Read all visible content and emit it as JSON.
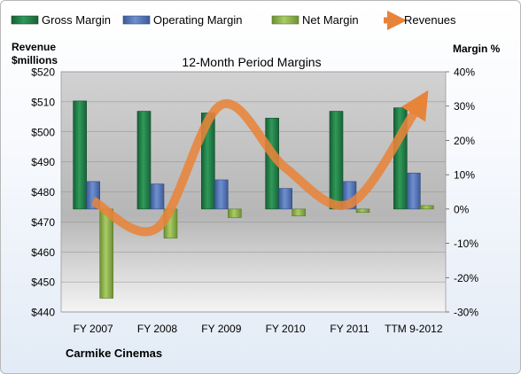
{
  "chart_data": {
    "type": "bar",
    "title": "12-Month Period Margins",
    "company": "Carmike Cinemas",
    "left_axis_label_line1": "Revenue",
    "left_axis_label_line2": "$millions",
    "right_axis_label": "Margin %",
    "categories": [
      "FY 2007",
      "FY 2008",
      "FY 2009",
      "FY 2010",
      "FY 2011",
      "TTM 9-2012"
    ],
    "left_ticks": [
      "$520",
      "$510",
      "$500",
      "$490",
      "$480",
      "$470",
      "$460",
      "$450",
      "$440"
    ],
    "right_ticks": [
      "40%",
      "30%",
      "20%",
      "10%",
      "0%",
      "-10%",
      "-20%",
      "-30%"
    ],
    "left_ylim": [
      440,
      520
    ],
    "right_ylim": [
      -30,
      40
    ],
    "series": [
      {
        "name": "Gross Margin",
        "axis": "right",
        "values": [
          31.5,
          28.5,
          28.0,
          26.5,
          28.5,
          29.5
        ],
        "color": "#1f7a45"
      },
      {
        "name": "Operating Margin",
        "axis": "right",
        "values": [
          8.0,
          7.3,
          8.5,
          6.0,
          8.0,
          10.5
        ],
        "color": "#4f6fb0"
      },
      {
        "name": "Net Margin",
        "axis": "right",
        "values": [
          -26.0,
          -8.5,
          -2.5,
          -2.0,
          -1.0,
          1.0
        ],
        "color": "#86ad45"
      },
      {
        "name": "Revenues",
        "axis": "left",
        "type": "line",
        "values": [
          477,
          468,
          509,
          488,
          476,
          506
        ],
        "color": "#e8843a"
      }
    ]
  }
}
